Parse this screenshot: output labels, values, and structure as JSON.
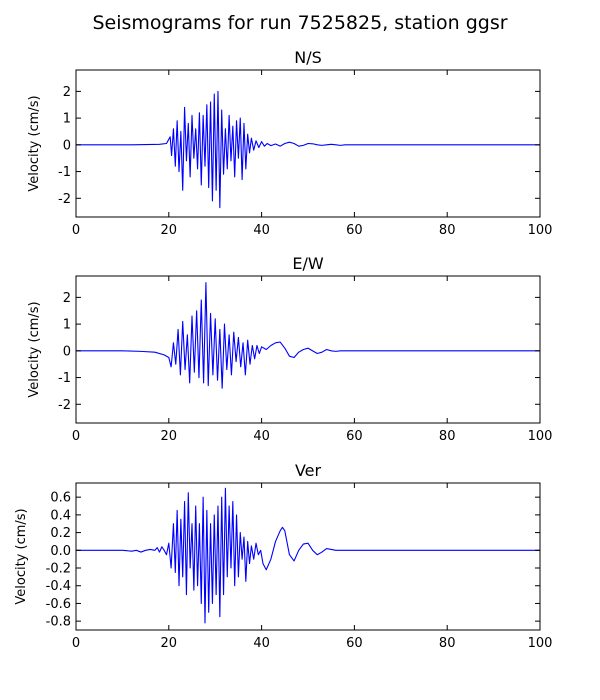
{
  "title": "Seismograms for run 7525825, station ggsr",
  "chart_data": [
    {
      "type": "line",
      "title": "N/S",
      "xlabel": "",
      "ylabel": "Velocity (cm/s)",
      "xlim": [
        0,
        100
      ],
      "ylim": [
        -2.7,
        2.8
      ],
      "xticks": [
        "0",
        "20",
        "40",
        "60",
        "80",
        "100"
      ],
      "yticks": [
        "-2",
        "-1",
        "0",
        "1",
        "2"
      ],
      "grid": false,
      "color": "#0000ff",
      "series": [
        {
          "x": [
            0,
            12,
            18,
            19.5,
            20.3,
            20.6,
            21,
            21.4,
            21.8,
            22.2,
            22.6,
            23,
            23.4,
            23.8,
            24.2,
            24.6,
            25,
            25.4,
            25.8,
            26.2,
            26.6,
            27,
            27.4,
            27.8,
            28.2,
            28.6,
            29,
            29.4,
            29.8,
            30.2,
            30.6,
            31,
            31.4,
            31.8,
            32.2,
            32.6,
            33,
            33.4,
            33.8,
            34.2,
            34.6,
            35,
            35.4,
            35.8,
            36.2,
            36.6,
            37,
            37.4,
            37.8,
            38.3,
            38.8,
            39.4,
            40,
            40.6,
            41.2,
            42,
            43,
            44,
            45,
            46,
            47,
            48,
            49,
            50,
            51,
            52,
            53,
            54,
            55,
            56,
            57,
            58,
            60,
            70,
            80,
            90,
            100
          ],
          "y": [
            0,
            0,
            0.02,
            0.05,
            0.3,
            -0.4,
            0.6,
            -0.8,
            0.9,
            -1.0,
            0.5,
            -1.7,
            1.4,
            -0.6,
            0.8,
            -1.2,
            1.1,
            -0.5,
            0.6,
            -0.9,
            1.2,
            -1.5,
            1.1,
            -0.8,
            1.5,
            -1.6,
            1.6,
            -2.1,
            1.9,
            -1.7,
            2.0,
            -2.35,
            1.3,
            -1.1,
            0.6,
            -0.9,
            1.1,
            -0.6,
            0.7,
            -1.2,
            0.9,
            -0.5,
            1.0,
            -1.3,
            0.8,
            -0.9,
            0.4,
            -0.3,
            0.25,
            -0.2,
            0.15,
            -0.1,
            0.12,
            -0.05,
            0.05,
            -0.03,
            0.03,
            -0.05,
            0.05,
            0.1,
            0.05,
            -0.05,
            -0.02,
            0.05,
            0.04,
            0.0,
            -0.02,
            0.0,
            0.02,
            0.0,
            -0.02,
            0.0,
            0.0,
            0.0,
            0.0,
            0.0,
            0.0
          ]
        }
      ]
    },
    {
      "type": "line",
      "title": "E/W",
      "xlabel": "",
      "ylabel": "Velocity (cm/s)",
      "xlim": [
        0,
        100
      ],
      "ylim": [
        -2.7,
        2.8
      ],
      "xticks": [
        "0",
        "20",
        "40",
        "60",
        "80",
        "100"
      ],
      "yticks": [
        "-2",
        "-1",
        "0",
        "1",
        "2"
      ],
      "grid": false,
      "color": "#0000ff",
      "series": [
        {
          "x": [
            0,
            10,
            14,
            17,
            19,
            20,
            20.5,
            21,
            21.5,
            22,
            22.5,
            23,
            23.5,
            24,
            24.5,
            25,
            25.5,
            26,
            26.5,
            27,
            27.5,
            28,
            28.5,
            29,
            29.5,
            30,
            30.5,
            31,
            31.5,
            32,
            32.5,
            33,
            33.5,
            34,
            34.5,
            35,
            35.5,
            36,
            36.5,
            37,
            37.5,
            38,
            38.5,
            39,
            39.5,
            40,
            41,
            42,
            43,
            44,
            45,
            46,
            47,
            48,
            49,
            50,
            51,
            52,
            53,
            54,
            55,
            56,
            57,
            60,
            70,
            80,
            100
          ],
          "y": [
            0,
            0,
            -0.02,
            -0.05,
            -0.15,
            -0.25,
            -0.6,
            0.3,
            -0.5,
            0.8,
            -0.9,
            1.1,
            -0.7,
            0.6,
            -1.2,
            1.3,
            -0.8,
            1.5,
            -1.0,
            1.9,
            -1.2,
            2.55,
            -1.3,
            1.4,
            -0.9,
            1.2,
            -1.1,
            0.8,
            -1.4,
            1.0,
            -0.7,
            0.6,
            -0.9,
            0.7,
            -0.4,
            0.5,
            -0.6,
            0.3,
            -0.9,
            0.4,
            -0.5,
            0.2,
            -0.3,
            0.2,
            -0.1,
            0.15,
            0.05,
            0.2,
            0.3,
            0.33,
            0.1,
            -0.2,
            -0.25,
            -0.05,
            0.05,
            0.1,
            0.0,
            -0.1,
            -0.05,
            0.05,
            0.0,
            -0.02,
            0.0,
            0.0,
            0.0,
            0.0,
            0.0
          ]
        }
      ]
    },
    {
      "type": "line",
      "title": "Ver",
      "xlabel": "",
      "ylabel": "Velocity (cm/s)",
      "xlim": [
        0,
        100
      ],
      "ylim": [
        -0.9,
        0.76
      ],
      "xticks": [
        "0",
        "20",
        "40",
        "60",
        "80",
        "100"
      ],
      "yticks": [
        "-0.8",
        "-0.6",
        "-0.4",
        "-0.2",
        "0.0",
        "0.2",
        "0.4",
        "0.6"
      ],
      "grid": false,
      "color": "#0000ff",
      "series": [
        {
          "x": [
            0,
            10,
            12,
            13,
            14,
            15,
            16,
            17,
            17.5,
            18,
            18.5,
            19,
            19.5,
            20,
            20.5,
            21,
            21.4,
            21.8,
            22.2,
            22.6,
            23,
            23.4,
            23.8,
            24.2,
            24.6,
            25,
            25.4,
            25.8,
            26.2,
            26.6,
            27,
            27.4,
            27.8,
            28.2,
            28.6,
            29,
            29.4,
            29.8,
            30.2,
            30.6,
            31,
            31.4,
            31.8,
            32.2,
            32.6,
            33,
            33.4,
            33.8,
            34.2,
            34.6,
            35,
            35.4,
            35.8,
            36.2,
            36.6,
            37,
            37.4,
            37.8,
            38.3,
            38.8,
            39.3,
            39.8,
            40.3,
            41,
            42,
            43,
            44,
            44.5,
            45,
            46,
            47,
            48,
            49,
            50,
            51,
            52,
            53,
            54,
            55,
            56,
            57,
            58,
            60,
            62,
            65,
            70,
            80,
            100
          ],
          "y": [
            0,
            0,
            -0.01,
            0.0,
            -0.02,
            0.0,
            0.01,
            0.0,
            0.03,
            -0.02,
            0.04,
            0.0,
            -0.05,
            0.08,
            -0.2,
            0.3,
            -0.25,
            0.45,
            -0.4,
            0.35,
            -0.3,
            0.55,
            -0.5,
            0.65,
            -0.2,
            0.3,
            -0.45,
            0.5,
            -0.4,
            0.3,
            -0.6,
            0.6,
            -0.82,
            0.45,
            -0.7,
            0.3,
            -0.6,
            0.4,
            -0.5,
            0.5,
            -0.75,
            0.6,
            -0.5,
            0.7,
            -0.3,
            0.5,
            -0.2,
            0.55,
            -0.4,
            0.4,
            -0.3,
            0.2,
            -0.1,
            0.15,
            -0.35,
            0.1,
            -0.15,
            0.05,
            -0.1,
            0.08,
            -0.05,
            0.0,
            -0.15,
            -0.22,
            -0.1,
            0.1,
            0.22,
            0.26,
            0.22,
            -0.05,
            -0.12,
            0.0,
            0.07,
            0.08,
            0.0,
            -0.05,
            -0.02,
            0.02,
            0.01,
            0.0,
            0.0,
            0.0,
            0.0,
            0.0,
            0.0,
            0.0,
            0.0,
            0.0
          ]
        }
      ]
    }
  ]
}
